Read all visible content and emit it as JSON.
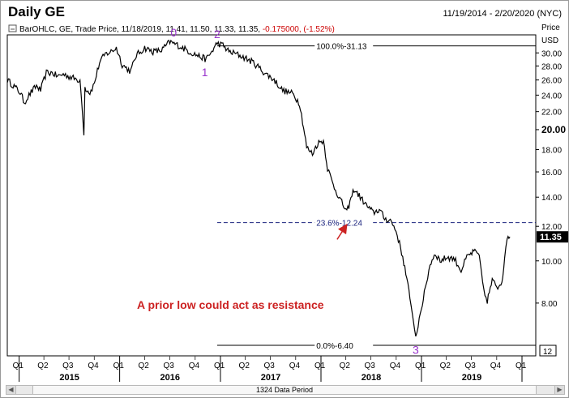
{
  "header": {
    "title": "Daily GE",
    "date_range": "11/19/2014 - 2/20/2020 (NYC)",
    "ohlc_info": "BarOHLC, GE, Trade Price,  11/18/2019, 11.41, 11.50, 11.33, 11.35, ",
    "change_info": "-0.175000, (-1.52%)"
  },
  "scrollbar": {
    "label": "1324 Data Period",
    "left_glyph": "◀",
    "right_glyph": "▶"
  },
  "chart_data": {
    "type": "line",
    "x_start": "2014-11-19",
    "x_end": "2019-11-18",
    "xlim": [
      "2014-11-19",
      "2020-02-20"
    ],
    "ylim": [
      6.4,
      33.0
    ],
    "y_scale": "log",
    "y_axis_title": [
      "Price",
      "USD"
    ],
    "y_ticks": [
      8,
      10,
      12,
      14,
      16,
      18,
      20,
      22,
      24,
      26,
      28,
      30
    ],
    "y_tick_labels": [
      "8.00",
      "10.00",
      "12.00",
      "14.00",
      "16.00",
      "18.00",
      "20.00",
      "22.00",
      "24.00",
      "26.00",
      "28.00",
      "30.00"
    ],
    "y_bold_ticks": [
      20
    ],
    "quarter_labels": [
      "Q1",
      "Q2",
      "Q3",
      "Q4",
      "Q1",
      "Q2",
      "Q3",
      "Q4",
      "Q1",
      "Q2",
      "Q3",
      "Q4",
      "Q1",
      "Q2",
      "Q3",
      "Q4",
      "Q1",
      "Q2",
      "Q3",
      "Q4",
      "Q1"
    ],
    "year_labels": [
      "2015",
      "2016",
      "2017",
      "2018",
      "2019"
    ],
    "series": [
      {
        "color": "#000000",
        "points": [
          [
            "2014-11-19",
            26.0
          ],
          [
            "2014-12-10",
            25.3
          ],
          [
            "2015-01-05",
            24.3
          ],
          [
            "2015-01-20",
            23.1
          ],
          [
            "2015-02-10",
            24.2
          ],
          [
            "2015-03-05",
            25.2
          ],
          [
            "2015-03-20",
            24.6
          ],
          [
            "2015-04-10",
            27.0
          ],
          [
            "2015-05-01",
            27.0
          ],
          [
            "2015-05-20",
            26.5
          ],
          [
            "2015-06-10",
            26.8
          ],
          [
            "2015-07-01",
            26.5
          ],
          [
            "2015-07-20",
            26.2
          ],
          [
            "2015-08-10",
            26.0
          ],
          [
            "2015-08-24",
            19.4
          ],
          [
            "2015-08-28",
            25.0
          ],
          [
            "2015-09-15",
            24.3
          ],
          [
            "2015-10-01",
            25.5
          ],
          [
            "2015-10-20",
            28.5
          ],
          [
            "2015-11-10",
            29.8
          ],
          [
            "2015-12-01",
            30.2
          ],
          [
            "2015-12-20",
            30.8
          ],
          [
            "2016-01-10",
            28.2
          ],
          [
            "2016-02-10",
            27.2
          ],
          [
            "2016-03-01",
            29.6
          ],
          [
            "2016-04-01",
            30.8
          ],
          [
            "2016-05-01",
            30.2
          ],
          [
            "2016-06-01",
            30.4
          ],
          [
            "2016-07-01",
            31.8
          ],
          [
            "2016-08-01",
            31.2
          ],
          [
            "2016-09-10",
            30.2
          ],
          [
            "2016-10-15",
            29.5
          ],
          [
            "2016-11-10",
            29.0
          ],
          [
            "2016-12-01",
            30.2
          ],
          [
            "2016-12-20",
            31.6
          ],
          [
            "2017-01-10",
            31.2
          ],
          [
            "2017-02-01",
            30.2
          ],
          [
            "2017-03-01",
            29.8
          ],
          [
            "2017-04-01",
            29.2
          ],
          [
            "2017-05-01",
            28.5
          ],
          [
            "2017-06-10",
            27.0
          ],
          [
            "2017-07-15",
            26.0
          ],
          [
            "2017-08-15",
            24.6
          ],
          [
            "2017-09-20",
            24.2
          ],
          [
            "2017-10-15",
            23.0
          ],
          [
            "2017-11-10",
            18.2
          ],
          [
            "2017-12-01",
            17.6
          ],
          [
            "2017-12-20",
            18.6
          ],
          [
            "2018-01-10",
            18.9
          ],
          [
            "2018-01-25",
            16.3
          ],
          [
            "2018-02-15",
            14.9
          ],
          [
            "2018-03-10",
            13.9
          ],
          [
            "2018-04-05",
            12.9
          ],
          [
            "2018-05-01",
            14.6
          ],
          [
            "2018-05-20",
            14.1
          ],
          [
            "2018-06-15",
            13.4
          ],
          [
            "2018-07-10",
            12.9
          ],
          [
            "2018-08-01",
            13.1
          ],
          [
            "2018-08-20",
            12.5
          ],
          [
            "2018-09-10",
            12.4
          ],
          [
            "2018-10-01",
            11.7
          ],
          [
            "2018-10-25",
            10.2
          ],
          [
            "2018-11-20",
            8.2
          ],
          [
            "2018-12-11",
            6.66
          ],
          [
            "2018-12-28",
            7.6
          ],
          [
            "2019-01-15",
            8.6
          ],
          [
            "2019-02-01",
            9.8
          ],
          [
            "2019-02-20",
            10.4
          ],
          [
            "2019-03-10",
            10.0
          ],
          [
            "2019-04-05",
            10.2
          ],
          [
            "2019-05-01",
            10.1
          ],
          [
            "2019-05-25",
            9.5
          ],
          [
            "2019-06-15",
            10.2
          ],
          [
            "2019-07-10",
            10.5
          ],
          [
            "2019-07-30",
            10.3
          ],
          [
            "2019-08-15",
            8.5
          ],
          [
            "2019-08-28",
            8.1
          ],
          [
            "2019-09-15",
            9.0
          ],
          [
            "2019-10-05",
            8.7
          ],
          [
            "2019-10-20",
            9.0
          ],
          [
            "2019-10-30",
            10.0
          ],
          [
            "2019-11-08",
            11.4
          ],
          [
            "2019-11-18",
            11.35
          ]
        ]
      }
    ],
    "last_price_label": "11.35",
    "pivots": [
      {
        "label": "0",
        "x": "2016-07-15",
        "y": 31.9,
        "color": "#9933cc"
      },
      {
        "label": "1",
        "x": "2016-11-05",
        "y": 28.9,
        "color": "#9933cc"
      },
      {
        "label": "2",
        "x": "2016-12-20",
        "y": 31.6,
        "color": "#9933cc"
      },
      {
        "label": "3",
        "x": "2018-12-11",
        "y": 6.66,
        "color": "#9933cc"
      }
    ],
    "fib_levels": [
      {
        "level_label": "100.0%",
        "value_label": "31.13",
        "value": 31.13,
        "style": "solid",
        "color": "#000000",
        "x_start": "2016-12-20",
        "x_end": "2020-02-20"
      },
      {
        "level_label": "23.6%",
        "value_label": "12.24",
        "value": 12.24,
        "style": "dashed",
        "color": "#1a237e",
        "x_start": "2016-12-20",
        "x_end": "2020-02-20"
      },
      {
        "level_label": "0.0%",
        "value_label": "6.40",
        "value": 6.4,
        "style": "solid",
        "color": "#000000",
        "x_start": "2016-12-20",
        "x_end": "2020-02-20"
      }
    ],
    "bottom_right_label": "12",
    "annotation": {
      "text": "A prior low could act as resistance",
      "color": "#cc2222",
      "arrow_tip": [
        "2018-04-05",
        12.2
      ]
    }
  }
}
